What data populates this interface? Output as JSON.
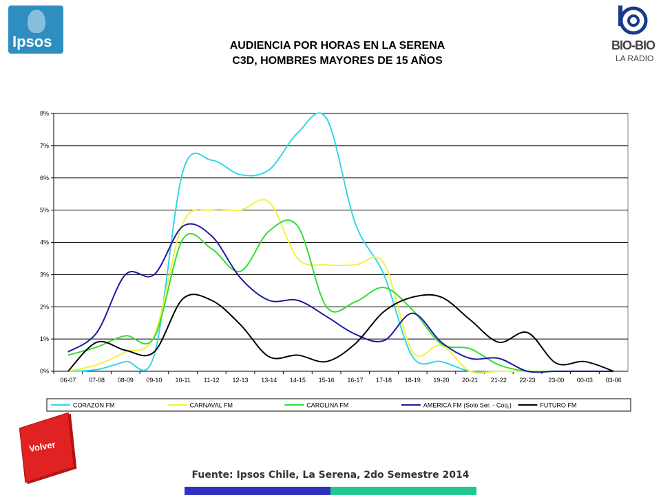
{
  "logos": {
    "left_text": "Ipsos",
    "right_text": "BIO-BIO",
    "right_sub": "LA RADIO",
    "left_icon": "ipsos-logo-icon",
    "right_icon": "biobio-logo-icon"
  },
  "titles": {
    "line1": "AUDIENCIA POR HORAS EN LA SERENA",
    "line2": "C3D, HOMBRES MAYORES DE 15 AÑOS"
  },
  "volver": {
    "label": "Volver"
  },
  "footer": {
    "source": "Fuente: Ipsos Chile, La Serena, 2do Semestre 2014"
  },
  "colors": {
    "bar_left": "#3030c0",
    "bar_right": "#20c890"
  },
  "chart_data": {
    "type": "line",
    "x": [
      "06-07",
      "07-08",
      "08-09",
      "09-10",
      "10-11",
      "11-12",
      "12-13",
      "13-14",
      "14-15",
      "15-16",
      "16-17",
      "17-18",
      "18-19",
      "19-20",
      "20-21",
      "21-22",
      "22-23",
      "23-00",
      "00-03",
      "03-06"
    ],
    "ylim": [
      0,
      8
    ],
    "yticks": [
      "0%",
      "1%",
      "2%",
      "3%",
      "4%",
      "5%",
      "6%",
      "7%",
      "8%"
    ],
    "grid": true,
    "legend_position": "bottom",
    "series": [
      {
        "name": "CORAZON FM",
        "color": "#33d6e6",
        "values": [
          0.0,
          0.05,
          0.3,
          0.5,
          6.2,
          6.55,
          6.1,
          6.25,
          7.4,
          7.85,
          4.6,
          3.0,
          0.45,
          0.3,
          0.0,
          0.0,
          0.0,
          0.0,
          0.0,
          0.0
        ]
      },
      {
        "name": "CARNAVAL FM",
        "color": "#f2f23a",
        "values": [
          0.0,
          0.2,
          0.6,
          1.1,
          4.6,
          5.0,
          5.0,
          5.25,
          3.5,
          3.3,
          3.3,
          3.35,
          0.6,
          0.8,
          0.0,
          0.0,
          0.0,
          0.0,
          0.0,
          0.0
        ]
      },
      {
        "name": "CAROLINA FM",
        "color": "#33dd33",
        "values": [
          0.5,
          0.75,
          1.1,
          1.05,
          4.1,
          3.8,
          3.1,
          4.35,
          4.5,
          2.0,
          2.15,
          2.6,
          1.9,
          0.85,
          0.7,
          0.2,
          0.0,
          0.0,
          0.0,
          0.0
        ]
      },
      {
        "name": "AMERICA FM  (Solo Ser. - Coq.)",
        "color": "#1a1aa0",
        "values": [
          0.6,
          1.2,
          3.0,
          3.0,
          4.5,
          4.2,
          2.9,
          2.2,
          2.2,
          1.7,
          1.15,
          0.95,
          1.8,
          0.9,
          0.4,
          0.4,
          0.0,
          0.0,
          0.0,
          0.0
        ]
      },
      {
        "name": "FUTURO FM",
        "color": "#000000",
        "values": [
          0.0,
          0.9,
          0.65,
          0.6,
          2.25,
          2.2,
          1.45,
          0.45,
          0.5,
          0.3,
          0.85,
          1.85,
          2.3,
          2.3,
          1.6,
          0.9,
          1.2,
          0.25,
          0.3,
          0.0
        ]
      }
    ]
  }
}
